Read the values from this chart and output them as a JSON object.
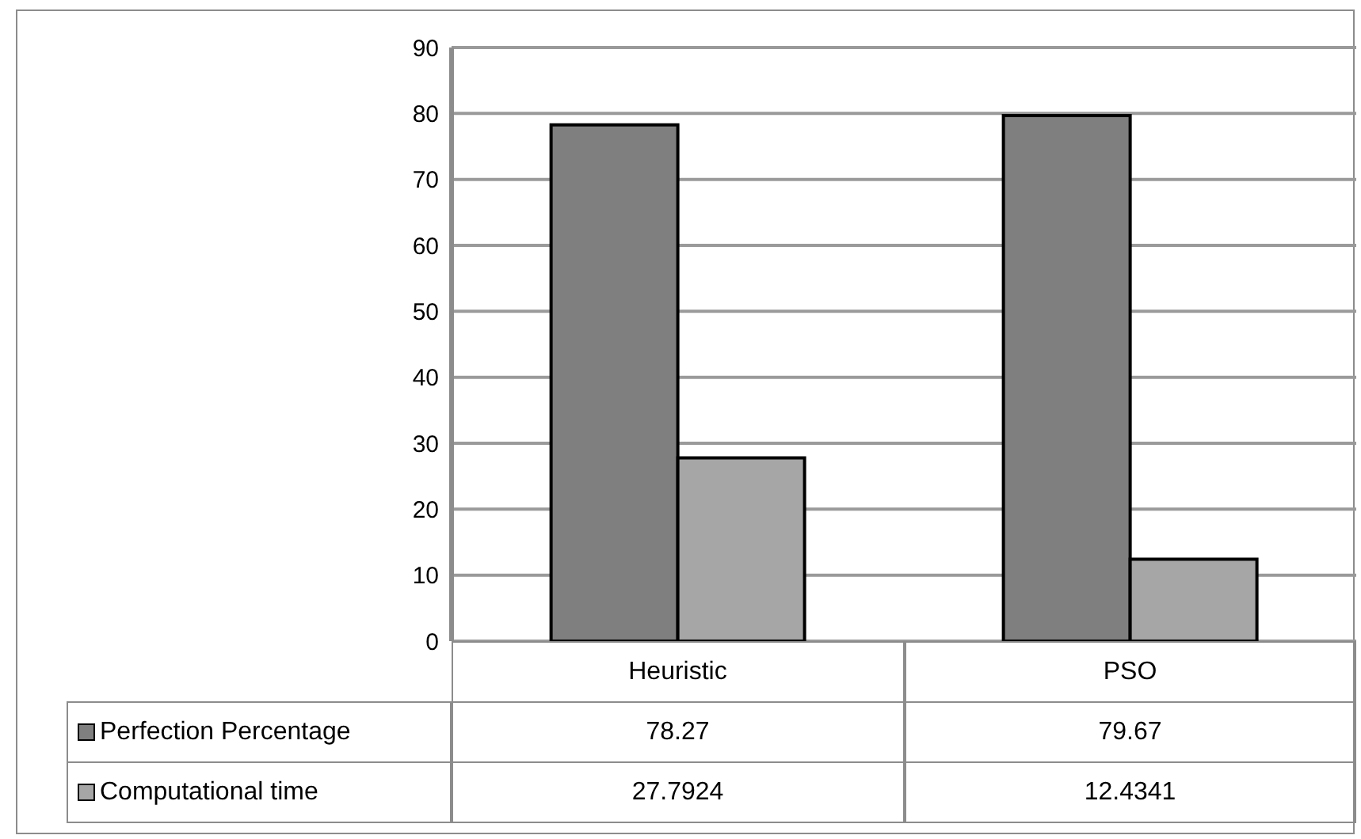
{
  "chart_data": {
    "type": "bar",
    "categories": [
      "Heuristic",
      "PSO"
    ],
    "series": [
      {
        "name": "Perfection Percentage",
        "color": "#7f7f7f",
        "values": [
          78.27,
          79.67
        ]
      },
      {
        "name": "Computational time",
        "color": "#a6a6a6",
        "values": [
          27.7924,
          12.4341
        ]
      }
    ],
    "ylim": [
      0,
      90
    ],
    "yticks": [
      0,
      10,
      20,
      30,
      40,
      50,
      60,
      70,
      80,
      90
    ],
    "grid": "y",
    "legend": "bottom",
    "data_labels": true
  }
}
